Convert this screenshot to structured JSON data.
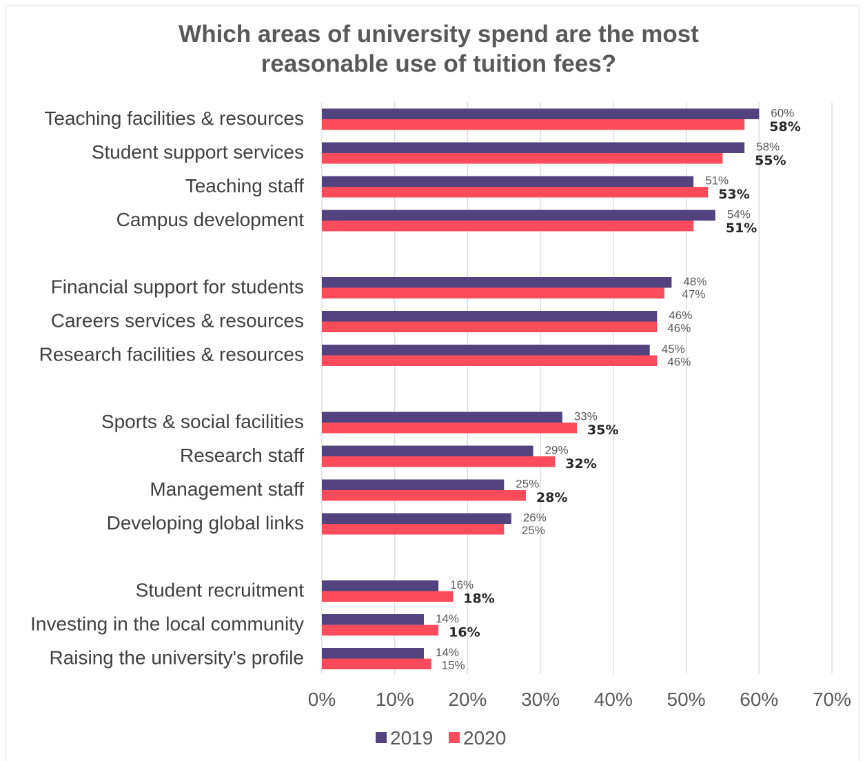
{
  "chart_data": {
    "type": "bar",
    "orientation": "horizontal",
    "title_lines": [
      "Which areas of university spend are the most",
      "reasonable use of tuition fees?"
    ],
    "xlabel": "",
    "ylabel": "",
    "xlim": [
      0,
      70
    ],
    "x_ticks": [
      "0%",
      "10%",
      "20%",
      "30%",
      "40%",
      "50%",
      "60%",
      "70%"
    ],
    "grid": "vertical",
    "legend_position": "bottom",
    "groups": [
      [
        {
          "label": "Teaching facilities & resources",
          "v2019": 60,
          "v2020": 58,
          "l2019": "60%",
          "l2020": "58%",
          "bold2020": true
        },
        {
          "label": "Student support services",
          "v2019": 58,
          "v2020": 55,
          "l2019": "58%",
          "l2020": "55%",
          "bold2020": true
        },
        {
          "label": "Teaching staff",
          "v2019": 51,
          "v2020": 53,
          "l2019": "51%",
          "l2020": "53%",
          "bold2020": true
        },
        {
          "label": "Campus development",
          "v2019": 54,
          "v2020": 51,
          "l2019": "54%",
          "l2020": "51%",
          "bold2020": true
        }
      ],
      [
        {
          "label": "Financial support for students",
          "v2019": 48,
          "v2020": 47,
          "l2019": "48%",
          "l2020": "47%",
          "bold2020": false
        },
        {
          "label": "Careers services & resources",
          "v2019": 46,
          "v2020": 46,
          "l2019": "46%",
          "l2020": "46%",
          "bold2020": false
        },
        {
          "label": "Research facilities & resources",
          "v2019": 45,
          "v2020": 46,
          "l2019": "45%",
          "l2020": "46%",
          "bold2020": false
        }
      ],
      [
        {
          "label": "Sports & social facilities",
          "v2019": 33,
          "v2020": 35,
          "l2019": "33%",
          "l2020": "35%",
          "bold2020": true
        },
        {
          "label": "Research staff",
          "v2019": 29,
          "v2020": 32,
          "l2019": "29%",
          "l2020": "32%",
          "bold2020": true
        },
        {
          "label": "Management staff",
          "v2019": 25,
          "v2020": 28,
          "l2019": "25%",
          "l2020": "28%",
          "bold2020": true
        },
        {
          "label": "Developing global links",
          "v2019": 26,
          "v2020": 25,
          "l2019": "26%",
          "l2020": "25%",
          "bold2020": false
        }
      ],
      [
        {
          "label": "Student recruitment",
          "v2019": 16,
          "v2020": 18,
          "l2019": "16%",
          "l2020": "18%",
          "bold2020": true
        },
        {
          "label": "Investing in the local community",
          "v2019": 14,
          "v2020": 16,
          "l2019": "14%",
          "l2020": "16%",
          "bold2020": true
        },
        {
          "label": "Raising the university's profile",
          "v2019": 14,
          "v2020": 15,
          "l2019": "14%",
          "l2020": "15%",
          "bold2020": false
        }
      ]
    ],
    "series": [
      {
        "name": "2019",
        "color": "#52437f"
      },
      {
        "name": "2020",
        "color": "#fc4c5c"
      }
    ]
  }
}
